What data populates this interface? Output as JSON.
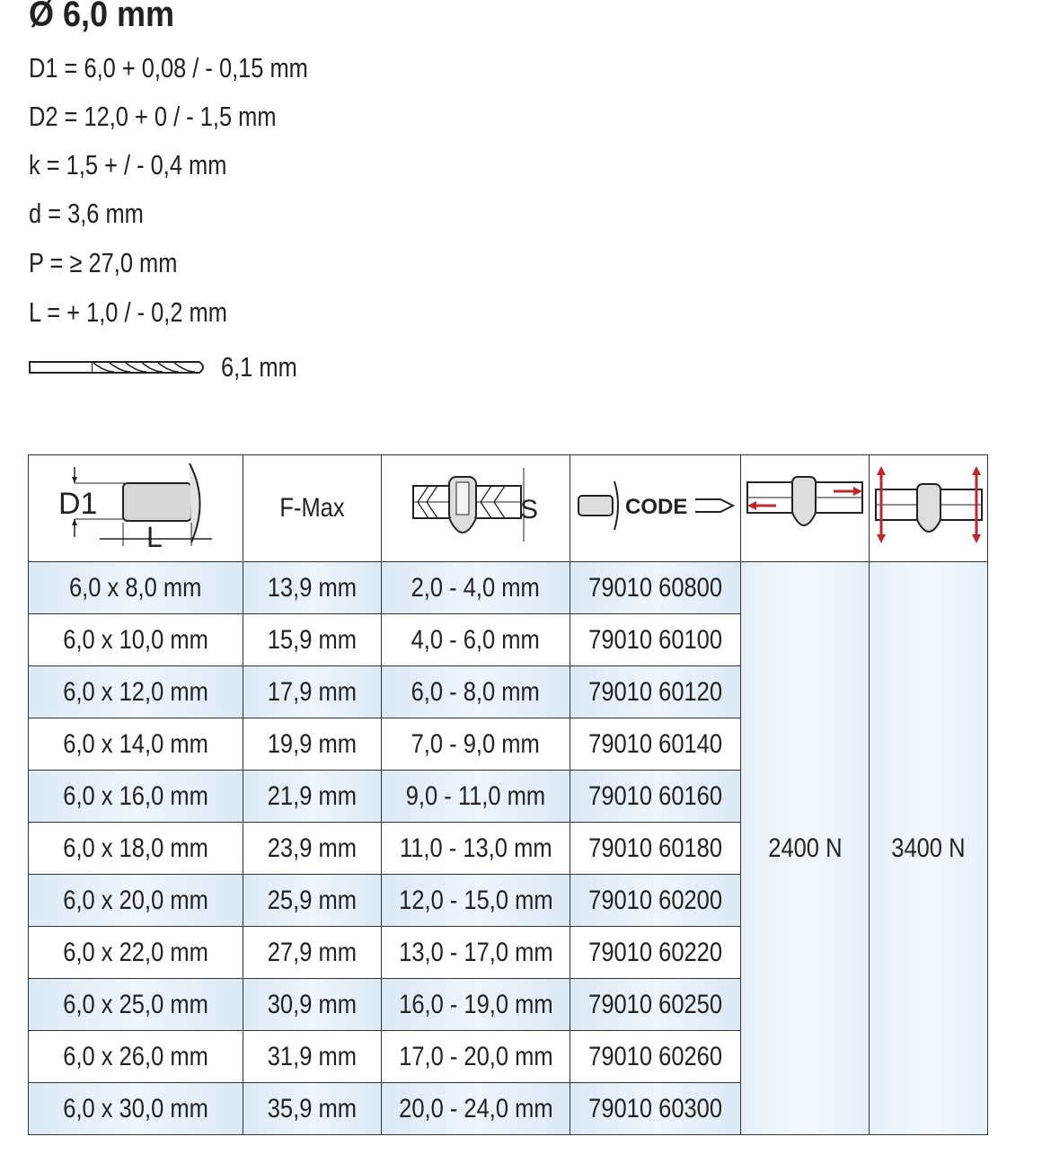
{
  "title": "Ø 6,0 mm",
  "specs": [
    "D1 = 6,0 + 0,08 / - 0,15 mm",
    "D2 = 12,0 + 0 / - 1,5 mm",
    "k = 1,5 + / - 0,4 mm",
    "d = 3,6 mm",
    "P = ≥ 27,0 mm",
    "L = + 1,0 / - 0,2 mm"
  ],
  "drill": {
    "icon": "drill-bit-icon",
    "label": "6,1 mm"
  },
  "table": {
    "headers": {
      "dimension_icon": "rivet-dimension-icon",
      "dimension_labels": {
        "d1": "D1",
        "l": "L"
      },
      "fmax": "F-Max",
      "grip_icon": "grip-range-icon",
      "grip_label": "S",
      "code_icon": "rivet-code-icon",
      "code_label": "CODE",
      "shear_icon": "shear-strength-icon",
      "tensile_icon": "tensile-strength-icon"
    },
    "rows": [
      [
        "6,0 x 8,0 mm",
        "13,9 mm",
        "2,0 - 4,0 mm",
        "79010 60800"
      ],
      [
        "6,0 x 10,0 mm",
        "15,9 mm",
        "4,0 - 6,0 mm",
        "79010 60100"
      ],
      [
        "6,0 x 12,0 mm",
        "17,9 mm",
        "6,0 - 8,0 mm",
        "79010 60120"
      ],
      [
        "6,0 x 14,0 mm",
        "19,9 mm",
        "7,0 - 9,0 mm",
        "79010 60140"
      ],
      [
        "6,0 x 16,0 mm",
        "21,9 mm",
        "9,0 - 11,0 mm",
        "79010 60160"
      ],
      [
        "6,0 x 18,0 mm",
        "23,9 mm",
        "11,0 - 13,0 mm",
        "79010 60180"
      ],
      [
        "6,0 x 20,0 mm",
        "25,9 mm",
        "12,0 - 15,0 mm",
        "79010 60200"
      ],
      [
        "6,0 x 22,0 mm",
        "27,9 mm",
        "13,0 - 17,0 mm",
        "79010 60220"
      ],
      [
        "6,0 x 25,0 mm",
        "30,9 mm",
        "16,0 - 19,0 mm",
        "79010 60250"
      ],
      [
        "6,0 x 26,0 mm",
        "31,9 mm",
        "17,0 - 20,0 mm",
        "79010 60260"
      ],
      [
        "6,0 x 30,0 mm",
        "35,9 mm",
        "20,0 - 24,0 mm",
        "79010 60300"
      ]
    ],
    "shear": "2400 N",
    "tensile": "3400 N"
  },
  "colors": {
    "row_highlight": "#dbe9f6",
    "arrow": "#c0272d",
    "border": "#333333"
  }
}
